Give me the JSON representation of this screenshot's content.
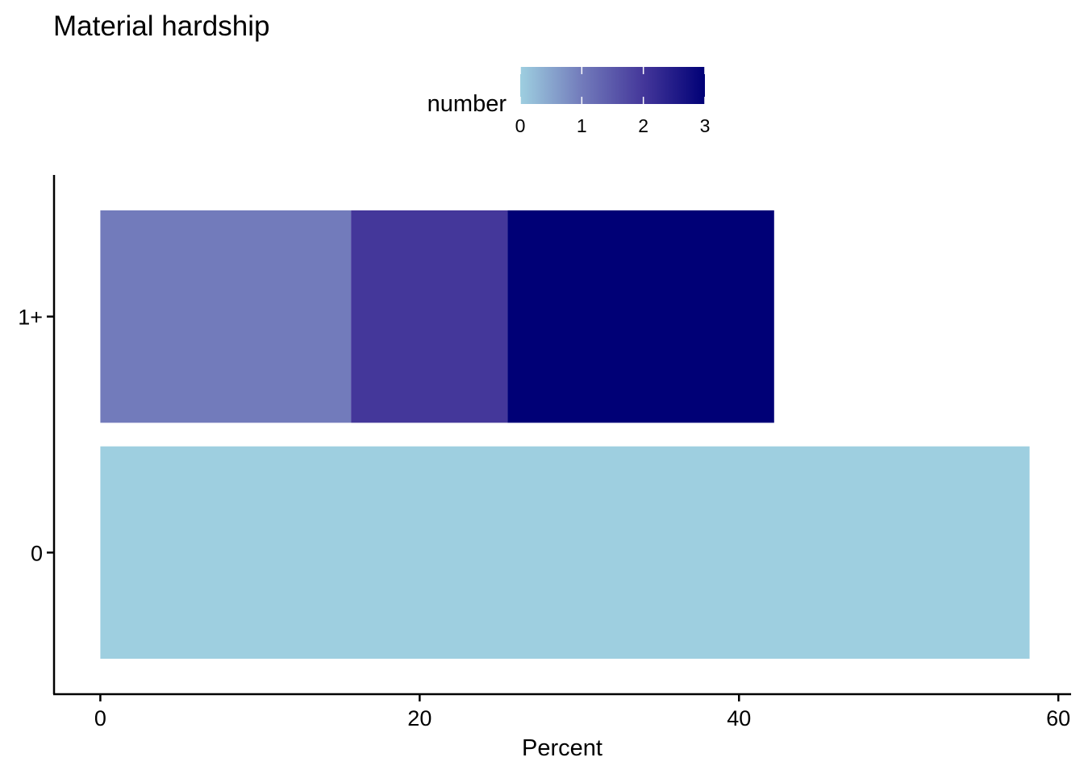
{
  "chart_data": {
    "type": "bar",
    "orientation": "horizontal",
    "stacked": true,
    "title": "Material hardship",
    "xlabel": "Percent",
    "ylabel": "",
    "xlim": [
      -2.9,
      60.8
    ],
    "x_ticks": [
      "0",
      "20",
      "40",
      "60"
    ],
    "categories": [
      "0",
      "1+"
    ],
    "segments": [
      {
        "category": "1+",
        "number": 1,
        "value": 15.7
      },
      {
        "category": "1+",
        "number": 2,
        "value": 9.8
      },
      {
        "category": "1+",
        "number": 3,
        "value": 16.7
      },
      {
        "category": "0",
        "number": 0,
        "value": 58.2
      }
    ],
    "legend": {
      "title": "number",
      "position": "top",
      "ticks": [
        "0",
        "1",
        "2",
        "3"
      ],
      "colors": [
        "#9ecfe0",
        "#727bbb",
        "#44379a",
        "#000076"
      ]
    },
    "grid": false
  }
}
